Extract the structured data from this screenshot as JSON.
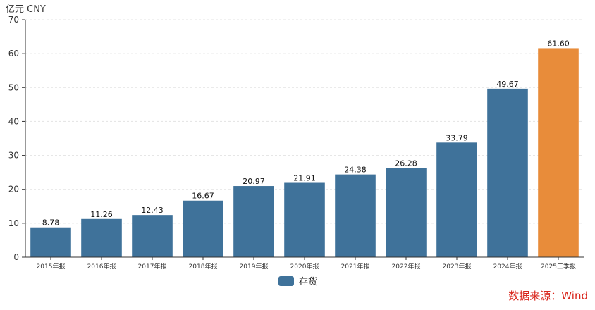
{
  "unit_label": "亿元  CNY",
  "source": "数据来源：Wind",
  "colors": {
    "default_bar": "#3f729a",
    "highlight_bar": "#e88c3a"
  },
  "chart_data": {
    "type": "bar",
    "categories": [
      "2015年报",
      "2016年报",
      "2017年报",
      "2018年报",
      "2019年报",
      "2020年报",
      "2021年报",
      "2022年报",
      "2023年报",
      "2024年报",
      "2025三季报"
    ],
    "series": [
      {
        "name": "存货",
        "values": [
          8.78,
          11.26,
          12.43,
          16.67,
          20.97,
          21.91,
          24.38,
          26.28,
          33.79,
          49.67,
          61.6
        ]
      }
    ],
    "value_labels": [
      "8.78",
      "11.26",
      "12.43",
      "16.67",
      "20.97",
      "21.91",
      "24.38",
      "26.28",
      "33.79",
      "49.67",
      "61.60"
    ],
    "highlight_index": 10,
    "ylim": [
      0,
      70
    ],
    "yticks": [
      0,
      10,
      20,
      30,
      40,
      50,
      60,
      70
    ],
    "grid": true,
    "legend": "bottom-center"
  }
}
